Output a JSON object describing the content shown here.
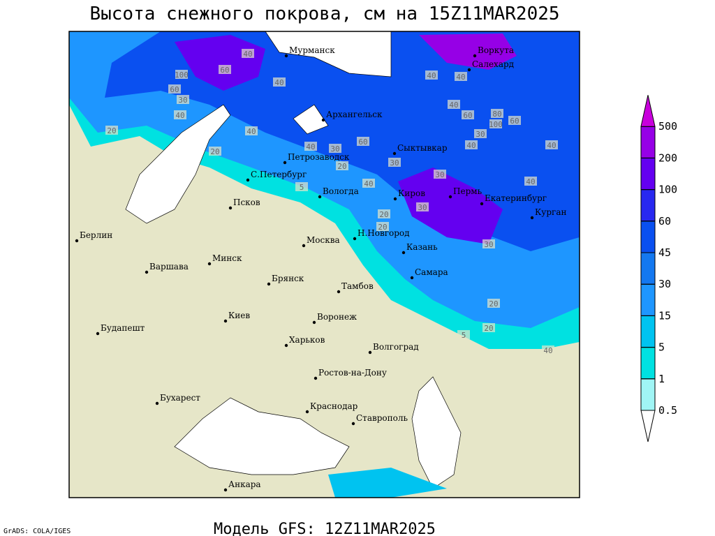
{
  "header": {
    "title": "Высота снежного покрова, см на 15Z11MAR2025"
  },
  "footer": {
    "model": "Модель GFS: 12Z11MAR2025",
    "credit": "GrADS: COLA/IGES"
  },
  "colorbar": {
    "levels": [
      0.5,
      1,
      5,
      15,
      30,
      45,
      60,
      100,
      200,
      500
    ],
    "colors": [
      "#ffffff",
      "#a0f5f5",
      "#00e1e1",
      "#00c3f0",
      "#1e96ff",
      "#1478f0",
      "#0a50f0",
      "#2828f0",
      "#6400f0",
      "#9600e6",
      "#c800dc"
    ]
  },
  "cities": [
    "Мурманск",
    "Воркута",
    "Салехард",
    "Архангельск",
    "Сыктывкар",
    "Петрозаводск",
    "С.Петербург",
    "Вологда",
    "Киров",
    "Пермь",
    "Екатеринбург",
    "Курган",
    "Псков",
    "Н.Новгород",
    "Казань",
    "Москва",
    "Берлин",
    "Минск",
    "Варшава",
    "Брянск",
    "Тамбов",
    "Самара",
    "Киев",
    "Воронеж",
    "Будапешт",
    "Харьков",
    "Волгоград",
    "Ростов-на-Дону",
    "Бухарест",
    "Краснодар",
    "Ставрополь",
    "Анкара"
  ],
  "contour_labels": [
    40,
    60,
    100,
    60,
    30,
    40,
    20,
    40,
    60,
    30,
    40,
    40,
    20,
    40,
    30,
    20,
    40,
    40,
    40,
    60,
    80,
    100,
    30,
    60,
    40,
    40,
    30,
    30,
    20,
    20,
    40,
    20,
    5,
    30,
    20,
    5,
    40
  ]
}
